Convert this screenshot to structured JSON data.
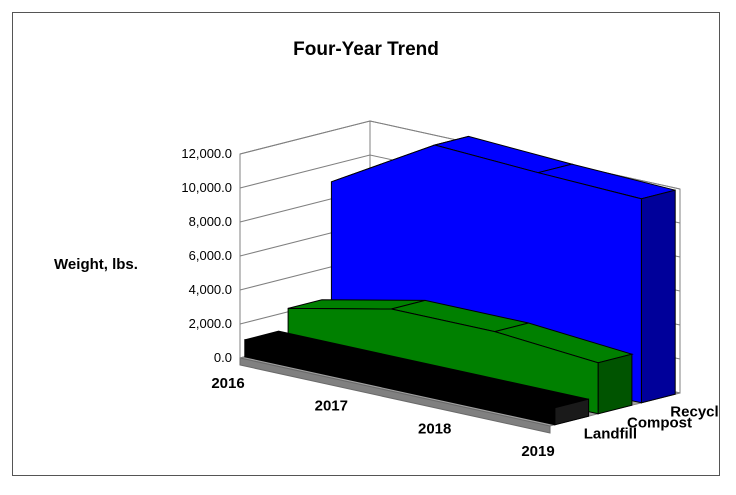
{
  "chart_data": {
    "type": "area",
    "title": "Four-Year Trend",
    "ylabel": "Weight, lbs.",
    "xlabel": "",
    "categories": [
      "2016",
      "2017",
      "2018",
      "2019"
    ],
    "ylim": [
      0,
      12000
    ],
    "yticks": [
      0,
      2000,
      4000,
      6000,
      8000,
      10000,
      12000
    ],
    "ytick_labels": [
      "0.0",
      "2,000.0",
      "4,000.0",
      "6,000.0",
      "8,000.0",
      "10,000.0",
      "12,000.0"
    ],
    "series": [
      {
        "name": "Landfill",
        "values": [
          1000,
          1000,
          1000,
          1000
        ],
        "color": "#000000",
        "side_color": "#1a1a1a"
      },
      {
        "name": "Compost",
        "values": [
          2200,
          3500,
          3500,
          3000
        ],
        "color": "#008000",
        "side_color": "#005400"
      },
      {
        "name": "Recycle",
        "values": [
          9000,
          12500,
          12200,
          12000
        ],
        "color": "#0000ff",
        "side_color": "#00009a"
      }
    ],
    "grid": true,
    "style": "3d"
  }
}
